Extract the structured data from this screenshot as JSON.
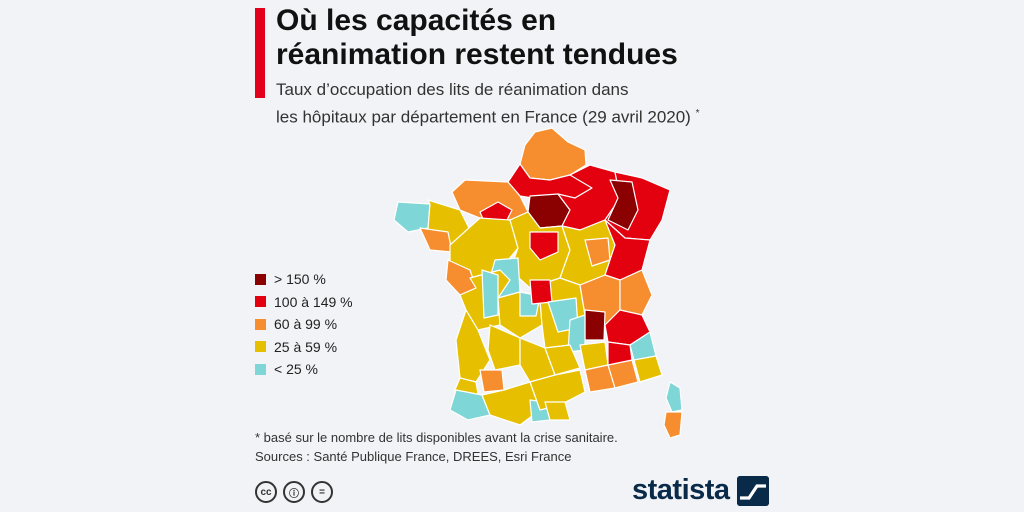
{
  "header": {
    "title_line1": "Où les capacités en",
    "title_line2": "réanimation restent tendues",
    "subtitle_line1": "Taux d’occupation des lits de réanimation dans",
    "subtitle_line2": "les hôpitaux par département en France (29 avril 2020)",
    "subtitle_mark": "*"
  },
  "colors": {
    "accent": "#e3001b",
    "gt150": "#8b0000",
    "c100_149": "#e3000f",
    "c60_99": "#f68d2e",
    "c25_59": "#e6c000",
    "lt25": "#7fd6d6",
    "border": "#ffffff"
  },
  "legend": [
    {
      "label": "> 150 %",
      "color": "#8b0000"
    },
    {
      "label": "100 à 149 %",
      "color": "#e3000f"
    },
    {
      "label": "60 à 99 %",
      "color": "#f68d2e"
    },
    {
      "label": "25 à 59 %",
      "color": "#e6c000"
    },
    {
      "label": "< 25 %",
      "color": "#7fd6d6"
    }
  ],
  "footnote": {
    "note": "* basé sur le nombre de lits disponibles avant la crise sanitaire.",
    "sources": "Sources : Santé Publique France, DREES, Esri France"
  },
  "licence_icons": [
    "cc-icon",
    "attribution-icon",
    "no-derivatives-icon"
  ],
  "licence_glyphs": [
    "cc",
    "ⓘ",
    "="
  ],
  "brand": {
    "name": "statista"
  }
}
